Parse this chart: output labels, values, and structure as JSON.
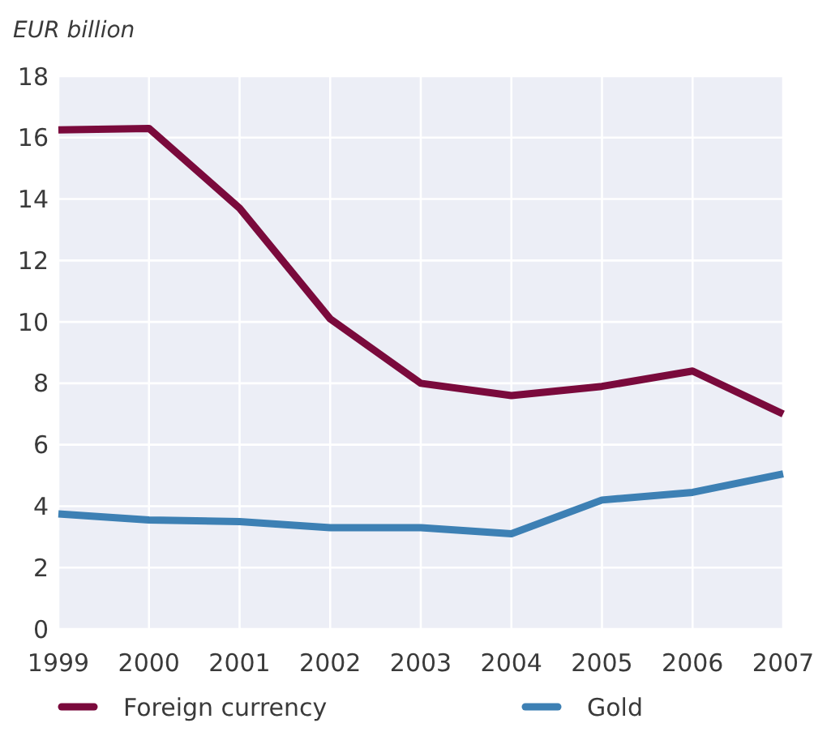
{
  "chart_data": {
    "type": "line",
    "ylabel": "EUR billion",
    "x": [
      1999,
      2000,
      2001,
      2002,
      2003,
      2004,
      2005,
      2006,
      2007
    ],
    "xlim": [
      1999,
      2007
    ],
    "xticks": [
      1999,
      2000,
      2001,
      2002,
      2003,
      2004,
      2005,
      2006,
      2007
    ],
    "ylim": [
      0,
      18
    ],
    "yticks": [
      0,
      2,
      4,
      6,
      8,
      10,
      12,
      14,
      16,
      18
    ],
    "grid": true,
    "legend": "bottom",
    "marker": "none",
    "line_style": "solid",
    "series": [
      {
        "name": "Foreign currency",
        "color": "#7a0a3c",
        "values": [
          16.25,
          16.3,
          13.7,
          10.1,
          8.0,
          7.6,
          7.9,
          8.4,
          7.0
        ]
      },
      {
        "name": "Gold",
        "color": "#3d80b4",
        "values": [
          3.75,
          3.55,
          3.5,
          3.3,
          3.3,
          3.1,
          4.2,
          4.45,
          5.05
        ]
      }
    ]
  }
}
